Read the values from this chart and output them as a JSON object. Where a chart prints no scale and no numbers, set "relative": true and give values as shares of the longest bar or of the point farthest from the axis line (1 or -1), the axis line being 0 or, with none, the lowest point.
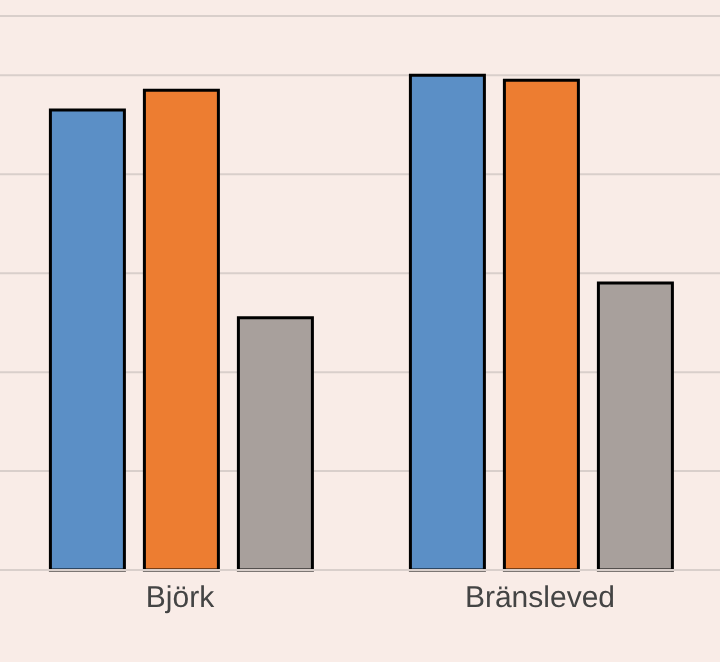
{
  "chart_data": {
    "type": "bar",
    "relative": true,
    "grid": "y",
    "categories": [
      "Björk",
      "Bränsleved"
    ],
    "series": [
      {
        "color": "#5b8fc6",
        "values": [
          0.93,
          1
        ]
      },
      {
        "color": "#ed7d31",
        "values": [
          0.97,
          0.99
        ]
      },
      {
        "color": "#a8a09c",
        "values": [
          0.51,
          0.58
        ]
      }
    ]
  }
}
